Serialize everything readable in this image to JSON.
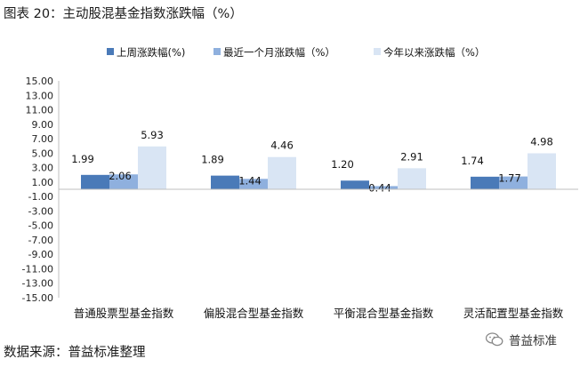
{
  "figure_title": "图表 20：主动股混基金指数涨跌幅（%）",
  "source_note": "数据来源：普益标准整理",
  "watermark": {
    "text": "普益标准",
    "icon": "wechat-icon"
  },
  "chart_data": {
    "type": "bar",
    "categories": [
      "普通股票型基金指数",
      "偏股混合型基金指数",
      "平衡混合型基金指数",
      "灵活配置型基金指数"
    ],
    "series": [
      {
        "name": "上周涨跌幅(%)",
        "color": "#4a7ab8",
        "values": [
          1.99,
          1.89,
          1.2,
          1.74
        ]
      },
      {
        "name": "最近一个月涨跌幅（%）",
        "color": "#8fb0de",
        "values": [
          2.06,
          1.44,
          0.44,
          1.77
        ]
      },
      {
        "name": "今年以来涨跌幅（%）",
        "color": "#d9e5f4",
        "values": [
          5.93,
          4.46,
          2.91,
          4.98
        ]
      }
    ],
    "data_labels": [
      [
        "1.99",
        "1.89",
        "1.20",
        "1.74"
      ],
      [
        "2.06",
        "1.44",
        "0.44",
        "1.77"
      ],
      [
        "5.93",
        "4.46",
        "2.91",
        "4.98"
      ]
    ],
    "y_ticks": [
      "15.00",
      "13.00",
      "11.00",
      "9.00",
      "7.00",
      "5.00",
      "3.00",
      "1.00",
      "-1.00",
      "-3.00",
      "-5.00",
      "-7.00",
      "-9.00",
      "-11.00",
      "-13.00",
      "-15.00"
    ],
    "ylim": [
      -15,
      15
    ],
    "legend_position": "top",
    "grid": false
  }
}
